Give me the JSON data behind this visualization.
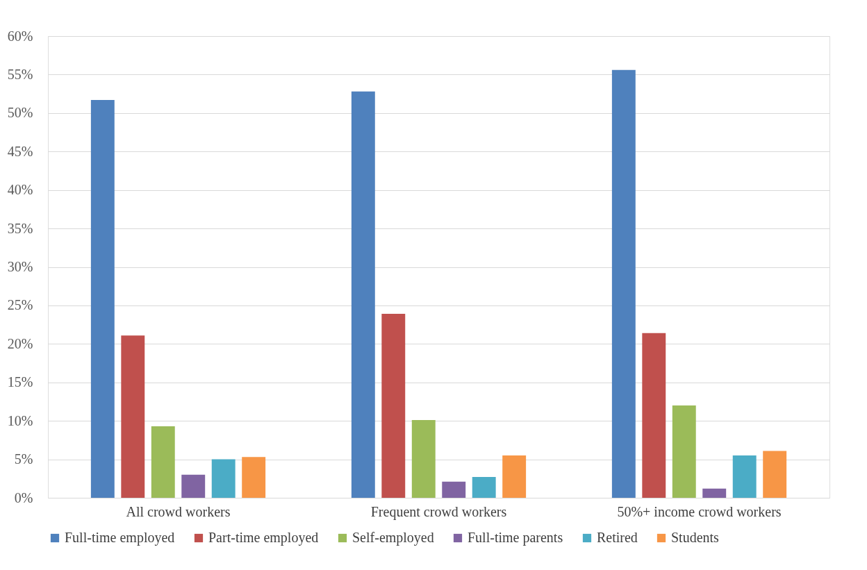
{
  "chart_data": {
    "type": "bar",
    "categories": [
      "All crowd workers",
      "Frequent crowd workers",
      "50%+ income crowd workers"
    ],
    "series": [
      {
        "name": "Full-time employed",
        "color": "#4f81bd",
        "values": [
          51.7,
          52.8,
          55.6
        ]
      },
      {
        "name": "Part-time employed",
        "color": "#c0504d",
        "values": [
          21.1,
          23.9,
          21.4
        ]
      },
      {
        "name": "Self-employed",
        "color": "#9bbb59",
        "values": [
          9.3,
          10.1,
          12.0
        ]
      },
      {
        "name": "Full-time parents",
        "color": "#8064a2",
        "values": [
          3.0,
          2.1,
          1.2
        ]
      },
      {
        "name": "Retired",
        "color": "#4bacc6",
        "values": [
          5.0,
          2.7,
          5.5
        ]
      },
      {
        "name": "Students",
        "color": "#f79646",
        "values": [
          5.3,
          5.5,
          6.1
        ]
      }
    ],
    "ylim": [
      0,
      60
    ],
    "yticks": [
      {
        "value": 0,
        "label": "0%"
      },
      {
        "value": 5,
        "label": "5%"
      },
      {
        "value": 10,
        "label": "10%"
      },
      {
        "value": 15,
        "label": "15%"
      },
      {
        "value": 20,
        "label": "20%"
      },
      {
        "value": 25,
        "label": "25%"
      },
      {
        "value": 30,
        "label": "30%"
      },
      {
        "value": 35,
        "label": "35%"
      },
      {
        "value": 40,
        "label": "40%"
      },
      {
        "value": 45,
        "label": "45%"
      },
      {
        "value": 50,
        "label": "50%"
      },
      {
        "value": 55,
        "label": "55%"
      },
      {
        "value": 60,
        "label": "60%"
      }
    ],
    "grid": "y",
    "legend": "bottom"
  }
}
